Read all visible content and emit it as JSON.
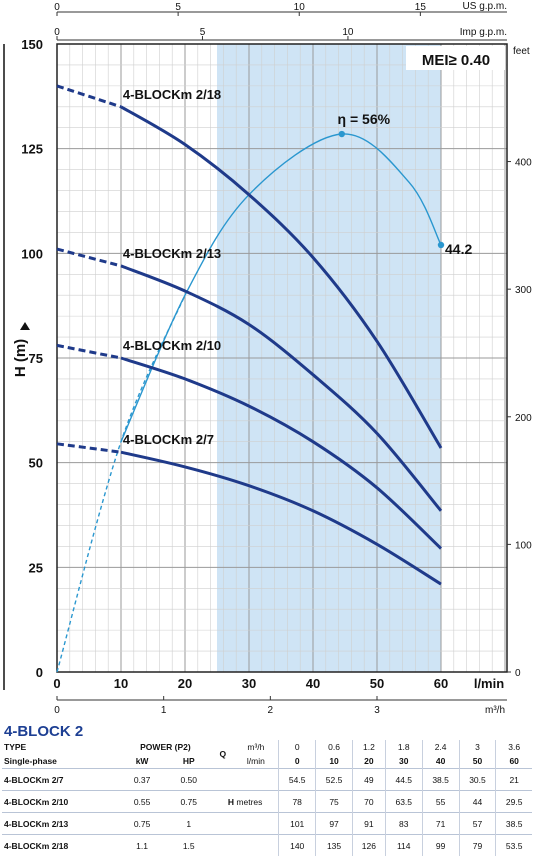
{
  "chart_data": {
    "type": "line",
    "badge": "MEI≥ 0.40",
    "x": [
      0,
      10,
      20,
      30,
      40,
      50,
      60
    ],
    "xlabel": "l/min",
    "xlim": [
      0,
      60
    ],
    "ylabel": "H (m)",
    "ylim": [
      0,
      150
    ],
    "y_ticks": [
      0,
      25,
      50,
      75,
      100,
      125,
      150
    ],
    "x_ticks": [
      0,
      10,
      20,
      30,
      40,
      50,
      60
    ],
    "secondary_axes": {
      "top_us_gpm": {
        "label": "US g.p.m.",
        "ticks": [
          0,
          5,
          10,
          15
        ]
      },
      "top_imp_gpm": {
        "label": "Imp g.p.m.",
        "ticks": [
          0,
          5,
          10
        ]
      },
      "right_feet": {
        "label": "feet",
        "ticks": [
          0,
          100,
          200,
          300,
          400
        ]
      },
      "bottom_m3h": {
        "label": "m³/h",
        "ticks": [
          0,
          1,
          2,
          3
        ]
      }
    },
    "shaded_range_lmin": [
      25,
      60
    ],
    "grid": true,
    "series": [
      {
        "name": "4-BLOCKm 2/18",
        "color": "#1f3a8a",
        "values": [
          140,
          135,
          126,
          114,
          99,
          79,
          53.5
        ]
      },
      {
        "name": "4-BLOCKm 2/13",
        "color": "#1f3a8a",
        "values": [
          101,
          97,
          91,
          83,
          71,
          57,
          38.5
        ]
      },
      {
        "name": "4-BLOCKm 2/10",
        "color": "#1f3a8a",
        "values": [
          78,
          75,
          70,
          63.5,
          55,
          44,
          29.5
        ]
      },
      {
        "name": "4-BLOCKm 2/7",
        "color": "#1f3a8a",
        "values": [
          54.5,
          52.5,
          49,
          44.5,
          38.5,
          30.5,
          21
        ]
      }
    ],
    "efficiency": {
      "color": "#2a97cf",
      "x": [
        0,
        10,
        20,
        30,
        44.5,
        55,
        60
      ],
      "y": [
        0,
        55,
        90,
        114,
        128.5,
        117,
        102
      ],
      "peak_label": "η = 56%",
      "peak_x": 44.5,
      "end_label": "44.2",
      "end_x": 60
    }
  },
  "table": {
    "title": "4-BLOCK 2",
    "h_type": "TYPE",
    "h_single": "Single-phase",
    "h_power": "POWER (P2)",
    "h_kw": "kW",
    "h_hp": "HP",
    "h_q": "Q",
    "h_m3h": "m³/h",
    "h_lmin": "l/min",
    "q_m3h": [
      "0",
      "0.6",
      "1.2",
      "1.8",
      "2.4",
      "3",
      "3.6"
    ],
    "q_lmin": [
      "0",
      "10",
      "20",
      "30",
      "40",
      "50",
      "60"
    ],
    "h_h": "H",
    "h_metres": "metres",
    "rows": [
      {
        "type": "4-BLOCKm 2/7",
        "kw": "0.37",
        "hp": "0.50",
        "h": [
          "54.5",
          "52.5",
          "49",
          "44.5",
          "38.5",
          "30.5",
          "21"
        ]
      },
      {
        "type": "4-BLOCKm 2/10",
        "kw": "0.55",
        "hp": "0.75",
        "h": [
          "78",
          "75",
          "70",
          "63.5",
          "55",
          "44",
          "29.5"
        ]
      },
      {
        "type": "4-BLOCKm 2/13",
        "kw": "0.75",
        "hp": "1",
        "h": [
          "101",
          "97",
          "91",
          "83",
          "71",
          "57",
          "38.5"
        ]
      },
      {
        "type": "4-BLOCKm 2/18",
        "kw": "1.1",
        "hp": "1.5",
        "h": [
          "140",
          "135",
          "126",
          "114",
          "99",
          "79",
          "53.5"
        ]
      }
    ]
  }
}
